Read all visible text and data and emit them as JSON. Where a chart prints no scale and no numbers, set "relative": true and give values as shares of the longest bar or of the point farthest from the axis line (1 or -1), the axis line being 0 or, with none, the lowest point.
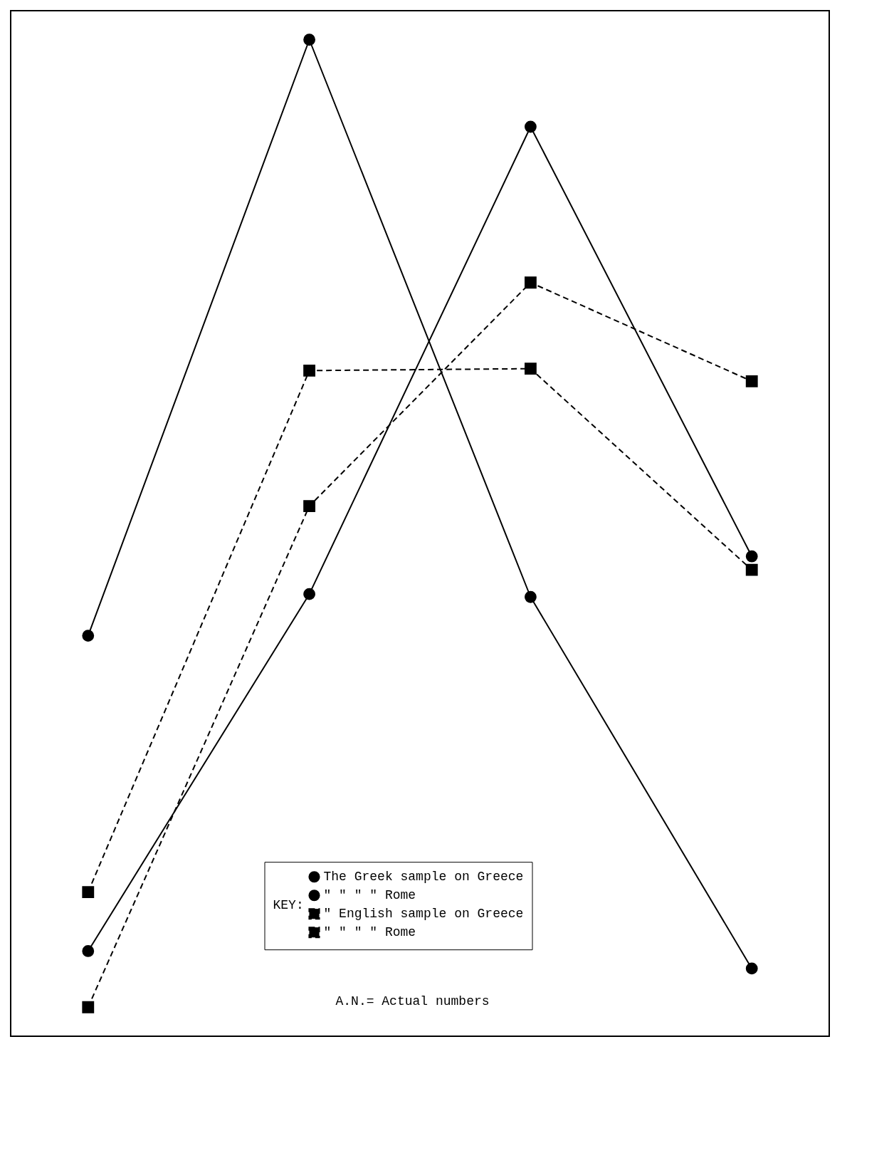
{
  "chart_data": {
    "type": "line",
    "relative": true,
    "categories": [
      null,
      null,
      null,
      null
    ],
    "tick_labels": false,
    "legend": "bottom right",
    "legend_title": "KEY:",
    "annotations": [
      "A.N.= Actual numbers"
    ],
    "series": [
      {
        "name": "The Greek sample on Greece",
        "color": "#000000",
        "marker": "circle",
        "line_style": "solid",
        "values": [
          0.384,
          1,
          0.424,
          0.04
        ]
      },
      {
        "name": "\"   \"   \"   \"  Rome",
        "color": "#000000",
        "marker": "circle",
        "line_style": "solid",
        "values": [
          0.058,
          0.427,
          0.91,
          0.466
        ]
      },
      {
        "name": "\" English sample on Greece",
        "color": "#000000",
        "marker": "square",
        "line_style": "dashed",
        "values": [
          0,
          0.518,
          0.749,
          0.647
        ]
      },
      {
        "name": "\"   \"   \"   \"  Rome ",
        "color": "#000000",
        "marker": "square",
        "line_style": "dashed",
        "values": [
          0.119,
          0.658,
          0.66,
          0.452
        ]
      }
    ]
  }
}
